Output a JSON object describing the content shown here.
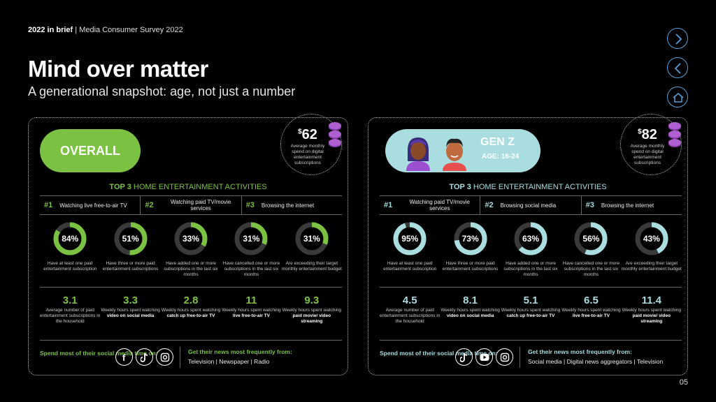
{
  "header": {
    "brief": "2022 in brief",
    "separator": "|",
    "survey": "Media Consumer Survey 2022",
    "title": "Mind over matter",
    "subtitle": "A generational snapshot: age, not just a number"
  },
  "nav": {
    "icons": [
      "chevron-right-icon",
      "chevron-left-icon",
      "home-icon"
    ],
    "color": "#5aa0d8"
  },
  "colors": {
    "green": "#7cc242",
    "teal": "#a9dde0",
    "ring_bg": "#3a3a3a"
  },
  "panels": {
    "overall": {
      "label": "OVERALL",
      "spend_currency": "$",
      "spend_amount": "62",
      "spend_label": "Average monthly spend on digital entertainment subscriptions",
      "top3_prefix": "TOP 3",
      "top3_suffix": "HOME ENTERTAINMENT ACTIVITIES",
      "activities": [
        {
          "rank": "#1",
          "text": "Watching live free-to-air TV"
        },
        {
          "rank": "#2",
          "text": "Watching paid TV/movie services"
        },
        {
          "rank": "#3",
          "text": "Browsing the internet"
        }
      ],
      "donuts": [
        {
          "pct": "84%",
          "value": 84,
          "caption": "Have at least one paid entertainment subscription"
        },
        {
          "pct": "51%",
          "value": 51,
          "caption": "Have three or more paid entertainment subscriptions"
        },
        {
          "pct": "33%",
          "value": 33,
          "caption": "Have added one or more subscriptions in the last six months"
        },
        {
          "pct": "31%",
          "value": 31,
          "caption": "Have cancelled one or more subscriptions in the last six months"
        },
        {
          "pct": "31%",
          "value": 31,
          "caption": "Are exceeding their target monthly entertainment budget"
        }
      ],
      "stats": [
        {
          "value": "3.1",
          "pre": "Average number of paid entertainment subscriptions in the household",
          "bold": "",
          "post": ""
        },
        {
          "value": "3.3",
          "pre": "Weekly hours spent watching",
          "bold": "video on social media",
          "post": ""
        },
        {
          "value": "2.8",
          "pre": "Weekly hours spent watching",
          "bold": "catch up free-to-air TV",
          "post": ""
        },
        {
          "value": "11",
          "pre": "Weekly hours spent watching",
          "bold": "live free-to-air TV",
          "post": ""
        },
        {
          "value": "9.3",
          "pre": "Weekly hours spent watching",
          "bold": "paid movie/ video streaming",
          "post": ""
        }
      ],
      "social_label": "Spend most of their social media time on:",
      "social_icons": [
        "facebook-icon",
        "tiktok-icon",
        "instagram-icon"
      ],
      "news_label": "Get their news most frequently from:",
      "news_sources": "Television | Newspaper | Radio"
    },
    "genz": {
      "label": "GEN Z",
      "age": "AGE: 16-24",
      "spend_currency": "$",
      "spend_amount": "82",
      "spend_label": "Average monthly spend on digital entertainment subscriptions",
      "top3_prefix": "TOP 3",
      "top3_suffix": "HOME ENTERTAINMENT ACTIVITIES",
      "activities": [
        {
          "rank": "#1",
          "text": "Watching paid TV/movie services"
        },
        {
          "rank": "#2",
          "text": "Browsing social media"
        },
        {
          "rank": "#3",
          "text": "Browsing the internet"
        }
      ],
      "donuts": [
        {
          "pct": "95%",
          "value": 95,
          "caption": "Have at least one paid entertainment subscription"
        },
        {
          "pct": "73%",
          "value": 73,
          "caption": "Have three or more paid entertainment subscriptions"
        },
        {
          "pct": "63%",
          "value": 63,
          "caption": "Have added one or more subscriptions in the last six months"
        },
        {
          "pct": "56%",
          "value": 56,
          "caption": "Have cancelled one or more subscriptions in the last six months"
        },
        {
          "pct": "43%",
          "value": 43,
          "caption": "Are exceeding their target monthly entertainment budget"
        }
      ],
      "stats": [
        {
          "value": "4.5",
          "pre": "Average number of paid entertainment subscriptions in the household",
          "bold": "",
          "post": ""
        },
        {
          "value": "8.1",
          "pre": "Weekly hours spent watching",
          "bold": "video on social media",
          "post": ""
        },
        {
          "value": "5.1",
          "pre": "Weekly hours spent watching",
          "bold": "catch up free-to-air TV",
          "post": ""
        },
        {
          "value": "6.5",
          "pre": "Weekly hours spent watching",
          "bold": "live free-to-air TV",
          "post": ""
        },
        {
          "value": "11.4",
          "pre": "Weekly hours spent watching",
          "bold": "paid movie/ video streaming",
          "post": ""
        }
      ],
      "social_label": "Spend most of their social media time on:",
      "social_icons": [
        "tiktok-icon",
        "youtube-icon",
        "instagram-icon"
      ],
      "news_label": "Get their news most frequently from:",
      "news_sources": "Social media | Digital news aggregators | Television"
    }
  },
  "page_number": "05"
}
